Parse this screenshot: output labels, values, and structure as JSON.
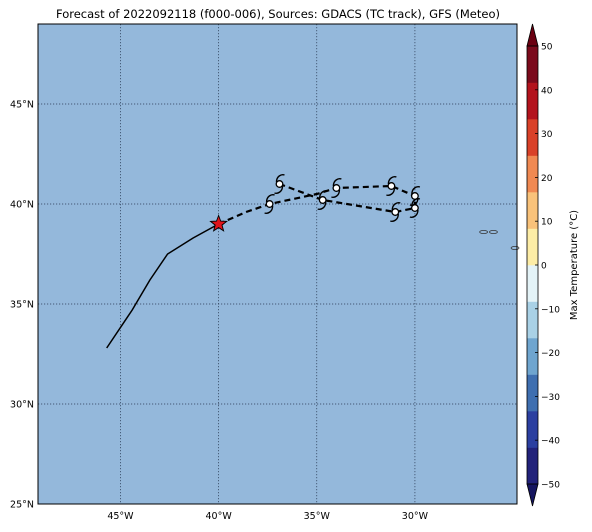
{
  "title": "Forecast of 2022092118 (f000-006), Sources: GDACS (TC track), GFS (Meteo)",
  "map": {
    "lon_range": [
      -49.2,
      -24.8
    ],
    "lat_range": [
      25,
      49
    ],
    "ocean_color": "#94b8db",
    "lat_ticks": [
      {
        "value": 25,
        "label": "25°N"
      },
      {
        "value": 30,
        "label": "30°N"
      },
      {
        "value": 35,
        "label": "35°N"
      },
      {
        "value": 40,
        "label": "40°N"
      },
      {
        "value": 45,
        "label": "45°N"
      }
    ],
    "lon_ticks": [
      {
        "value": -45,
        "label": "45°W"
      },
      {
        "value": -40,
        "label": "40°W"
      },
      {
        "value": -35,
        "label": "35°W"
      },
      {
        "value": -30,
        "label": "30°W"
      }
    ],
    "observed_track": [
      [
        -45.7,
        32.8
      ],
      [
        -44.4,
        34.7
      ],
      [
        -43.5,
        36.2
      ],
      [
        -42.6,
        37.5
      ],
      [
        -41.3,
        38.3
      ],
      [
        -40.0,
        39.0
      ]
    ],
    "current_position": [
      -40.0,
      39.0
    ],
    "forecast_track": [
      [
        -40.0,
        39.0
      ],
      [
        -38.6,
        39.6
      ],
      [
        -37.4,
        40.0
      ],
      [
        -35.0,
        40.5
      ],
      [
        -34.0,
        40.8
      ],
      [
        -31.2,
        40.9
      ],
      [
        -30.0,
        40.4
      ],
      [
        -30.0,
        39.8
      ],
      [
        -31.0,
        39.6
      ],
      [
        -34.7,
        40.2
      ],
      [
        -36.9,
        41.0
      ]
    ],
    "cyclone_positions": [
      [
        -36.9,
        41.0
      ],
      [
        -37.4,
        40.0
      ],
      [
        -34.0,
        40.8
      ],
      [
        -34.7,
        40.2
      ],
      [
        -31.2,
        40.9
      ],
      [
        -31.0,
        39.6
      ],
      [
        -30.0,
        40.4
      ],
      [
        -30.0,
        39.8
      ]
    ],
    "small_islands": [
      [
        -26.5,
        38.6
      ],
      [
        -26.0,
        38.6
      ],
      [
        -24.9,
        37.8
      ]
    ]
  },
  "colorbar": {
    "label": "Max Temperature (°C)",
    "min": -50,
    "max": 50,
    "ticks": [
      50,
      40,
      30,
      20,
      10,
      0,
      -10,
      -20,
      -30,
      -40,
      -50
    ],
    "tick_labels": [
      "50",
      "40",
      "30",
      "20",
      "10",
      "0",
      "−10",
      "−20",
      "−30",
      "−40",
      "−50"
    ],
    "colors": [
      "#22227a",
      "#2b3fa0",
      "#3f6fb0",
      "#6fa5cf",
      "#a9d1e6",
      "#e4f3f7",
      "#fdeda6",
      "#f9c27a",
      "#f08952",
      "#d94128",
      "#b3131d",
      "#7b0a1c"
    ],
    "under_color": "#161660",
    "over_color": "#6a0011"
  }
}
